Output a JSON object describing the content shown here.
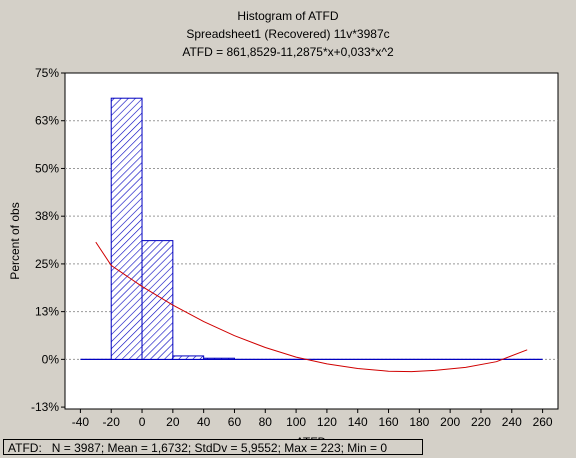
{
  "chart_data": {
    "type": "bar",
    "title": "Histogram of ATFD",
    "subtitle": "Spreadsheet1  (Recovered) 11v*3987c",
    "fit_equation": "ATFD = 861,8529-11,2875*x+0,033*x^2",
    "xlabel": "ATFD",
    "ylabel": "Percent of obs",
    "xlim": [
      -50,
      270
    ],
    "ylim": [
      -13,
      75
    ],
    "x_ticks": [
      "-40",
      "-20",
      "0",
      "20",
      "40",
      "60",
      "80",
      "100",
      "120",
      "140",
      "160",
      "180",
      "200",
      "220",
      "240",
      "260"
    ],
    "x_tick_values": [
      -40,
      -20,
      0,
      20,
      40,
      60,
      80,
      100,
      120,
      140,
      160,
      180,
      200,
      220,
      240,
      260
    ],
    "y_ticks": [
      "75%",
      "63%",
      "50%",
      "38%",
      "25%",
      "13%",
      "0%",
      "-13%"
    ],
    "y_tick_values": [
      75,
      62.5,
      50,
      37.5,
      25,
      12.5,
      0,
      -12.5
    ],
    "bins": [
      {
        "from": -20,
        "to": 0,
        "value": 68.4
      },
      {
        "from": 0,
        "to": 20,
        "value": 31.1
      },
      {
        "from": 20,
        "to": 40,
        "value": 0.9
      },
      {
        "from": 40,
        "to": 60,
        "value": 0.3
      },
      {
        "from": 60,
        "to": 80,
        "value": 0
      },
      {
        "from": 80,
        "to": 100,
        "value": 0
      },
      {
        "from": 100,
        "to": 120,
        "value": 0
      },
      {
        "from": 120,
        "to": 140,
        "value": 0
      },
      {
        "from": 140,
        "to": 160,
        "value": 0
      },
      {
        "from": 160,
        "to": 180,
        "value": 0
      },
      {
        "from": 180,
        "to": 200,
        "value": 0
      },
      {
        "from": 200,
        "to": 220,
        "value": 0
      },
      {
        "from": 220,
        "to": 240,
        "value": 0
      },
      {
        "from": 240,
        "to": 260,
        "value": 0
      }
    ],
    "fit_curve": {
      "points": [
        [
          -30,
          30.7
        ],
        [
          -20,
          24.6
        ],
        [
          0,
          19.1
        ],
        [
          20,
          14.2
        ],
        [
          40,
          9.9
        ],
        [
          60,
          6.2
        ],
        [
          80,
          3.1
        ],
        [
          100,
          0.6
        ],
        [
          120,
          -1.2
        ],
        [
          140,
          -2.4
        ],
        [
          160,
          -3.1
        ],
        [
          175,
          -3.2
        ],
        [
          190,
          -2.9
        ],
        [
          210,
          -2.1
        ],
        [
          230,
          -0.6
        ],
        [
          250,
          2.5
        ]
      ],
      "color": "#d00000"
    },
    "bar_color": "#0000c0",
    "grid": true
  },
  "status_bar": {
    "text": "ATFD:   N = 3987; Mean = 1,6732; StdDv = 5,9552; Max = 223; Min = 0"
  }
}
